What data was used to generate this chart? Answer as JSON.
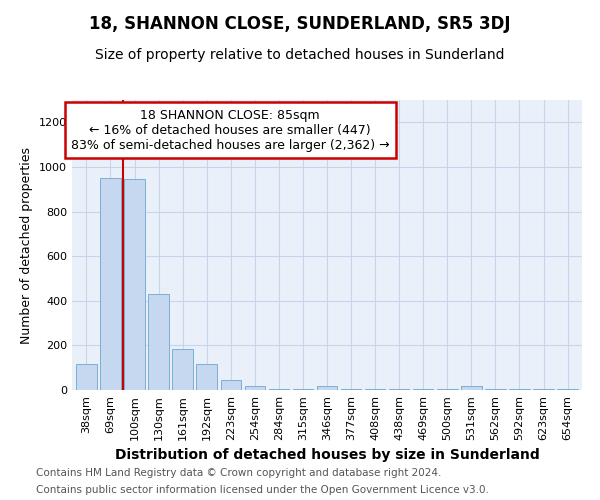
{
  "title": "18, SHANNON CLOSE, SUNDERLAND, SR5 3DJ",
  "subtitle": "Size of property relative to detached houses in Sunderland",
  "xlabel": "Distribution of detached houses by size in Sunderland",
  "ylabel": "Number of detached properties",
  "categories": [
    "38sqm",
    "69sqm",
    "100sqm",
    "130sqm",
    "161sqm",
    "192sqm",
    "223sqm",
    "254sqm",
    "284sqm",
    "315sqm",
    "346sqm",
    "377sqm",
    "408sqm",
    "438sqm",
    "469sqm",
    "500sqm",
    "531sqm",
    "562sqm",
    "592sqm",
    "623sqm",
    "654sqm"
  ],
  "values": [
    115,
    950,
    948,
    430,
    182,
    115,
    46,
    18,
    3,
    3,
    18,
    3,
    3,
    3,
    3,
    3,
    18,
    3,
    3,
    3,
    3
  ],
  "bar_color": "#c5d8f0",
  "bar_edge_color": "#7bafd4",
  "bar_width": 0.85,
  "red_line_x": 1.5,
  "annotation_text": "18 SHANNON CLOSE: 85sqm\n← 16% of detached houses are smaller (447)\n83% of semi-detached houses are larger (2,362) →",
  "annotation_box_color": "#ffffff",
  "annotation_box_edge_color": "#cc0000",
  "ylim": [
    0,
    1300
  ],
  "yticks": [
    0,
    200,
    400,
    600,
    800,
    1000,
    1200
  ],
  "background_color": "#ffffff",
  "plot_bg_color": "#eaf0fa",
  "grid_color": "#c8d4ea",
  "footer_line1": "Contains HM Land Registry data © Crown copyright and database right 2024.",
  "footer_line2": "Contains public sector information licensed under the Open Government Licence v3.0.",
  "title_fontsize": 12,
  "subtitle_fontsize": 10,
  "xlabel_fontsize": 10,
  "ylabel_fontsize": 9,
  "tick_fontsize": 8,
  "annot_fontsize": 9,
  "footer_fontsize": 7.5
}
